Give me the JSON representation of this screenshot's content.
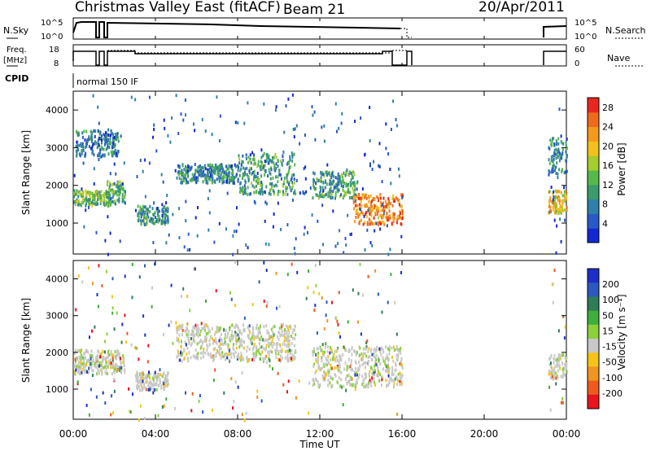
{
  "header": {
    "title": "Christmas Valley East (fitACF)",
    "beam": "Beam 21",
    "date": "20/Apr/2011"
  },
  "panels": {
    "nsky": {
      "label": "N.Sky",
      "ticks": [
        "10^5",
        "10^0"
      ],
      "right_label": "N.Search",
      "right_ticks": [
        "10^5",
        "10^0"
      ]
    },
    "freq": {
      "label_line1": "Freq.",
      "label_line2": "[MHz]",
      "ticks": [
        "18",
        "8"
      ],
      "right_label": "Nave",
      "right_ticks": [
        "60",
        "0"
      ]
    },
    "cpid": {
      "label": "CPID",
      "mode": "normal 150 IF"
    }
  },
  "time_axis": {
    "label": "Time UT",
    "ticks": [
      "00:00",
      "04:00",
      "08:00",
      "12:00",
      "16:00",
      "20:00",
      "00:00"
    ]
  },
  "colors": {
    "power_scale": [
      "#1428d2",
      "#2a58c8",
      "#2f7fa8",
      "#3d9a6a",
      "#56b84a",
      "#a6cc2e",
      "#f0c21a",
      "#f39a1e",
      "#ef6a1e",
      "#e8281e"
    ],
    "velocity_scale": [
      "#1e2ec8",
      "#2c58c0",
      "#2e7d56",
      "#3fae3a",
      "#8cd03c",
      "#c8c8c8",
      "#f5c414",
      "#f09422",
      "#ee5a1e",
      "#e8141e"
    ]
  },
  "chart_data": [
    {
      "type": "heatmap",
      "name": "power",
      "ylabel": "Slant Range [km]",
      "xlabel": "",
      "yticks": [
        1000,
        2000,
        3000,
        4000
      ],
      "ylim": [
        180,
        4500
      ],
      "xlim_hours": [
        0,
        24
      ],
      "colorbar": {
        "label": "Power [dB]",
        "ticks": [
          4,
          8,
          12,
          16,
          20,
          24,
          28
        ],
        "range": [
          0,
          30
        ]
      },
      "echo_bands": [
        {
          "t_start": 0.0,
          "t_end": 1.8,
          "range_start_km": 1500,
          "range_end_km": 1900,
          "level": 12
        },
        {
          "t_start": 1.6,
          "t_end": 2.5,
          "range_start_km": 1550,
          "range_end_km": 2150,
          "level": 11
        },
        {
          "t_start": 0.1,
          "t_end": 2.2,
          "range_start_km": 2800,
          "range_end_km": 3500,
          "level": 6
        },
        {
          "t_start": 3.1,
          "t_end": 4.6,
          "range_start_km": 1000,
          "range_end_km": 1500,
          "level": 8
        },
        {
          "t_start": 5.0,
          "t_end": 8.0,
          "range_start_km": 2100,
          "range_end_km": 2600,
          "level": 7
        },
        {
          "t_start": 8.0,
          "t_end": 10.8,
          "range_start_km": 1800,
          "range_end_km": 2900,
          "level": 9
        },
        {
          "t_start": 11.6,
          "t_end": 13.8,
          "range_start_km": 1700,
          "range_end_km": 2400,
          "level": 9
        },
        {
          "t_start": 13.6,
          "t_end": 16.0,
          "range_start_km": 1000,
          "range_end_km": 1800,
          "level": 22
        },
        {
          "t_start": 23.1,
          "t_end": 24.0,
          "range_start_km": 1300,
          "range_end_km": 1900,
          "level": 18
        },
        {
          "t_start": 23.1,
          "t_end": 24.0,
          "range_start_km": 2300,
          "range_end_km": 3300,
          "level": 7
        }
      ]
    },
    {
      "type": "heatmap",
      "name": "velocity",
      "ylabel": "Slant Range [km]",
      "xlabel": "Time UT",
      "yticks": [
        1000,
        2000,
        3000,
        4000
      ],
      "ylim": [
        180,
        4500
      ],
      "xlim_hours": [
        0,
        24
      ],
      "colorbar": {
        "label": "Velocity [m s⁻¹]",
        "ticks": [
          200,
          100,
          50,
          15,
          -15,
          -50,
          -100,
          -200
        ],
        "range": [
          -250,
          250
        ]
      },
      "echo_bands": [
        {
          "t_start": 0.0,
          "t_end": 2.5,
          "range_start_km": 1450,
          "range_end_km": 2100,
          "level": 0
        },
        {
          "t_start": 3.0,
          "t_end": 4.6,
          "range_start_km": 1000,
          "range_end_km": 1500,
          "level": 0
        },
        {
          "t_start": 5.0,
          "t_end": 10.8,
          "range_start_km": 1800,
          "range_end_km": 2800,
          "level": 0
        },
        {
          "t_start": 11.6,
          "t_end": 16.0,
          "range_start_km": 1100,
          "range_end_km": 2200,
          "level": 0
        },
        {
          "t_start": 23.1,
          "t_end": 24.0,
          "range_start_km": 1300,
          "range_end_km": 2000,
          "level": 0
        }
      ]
    }
  ]
}
